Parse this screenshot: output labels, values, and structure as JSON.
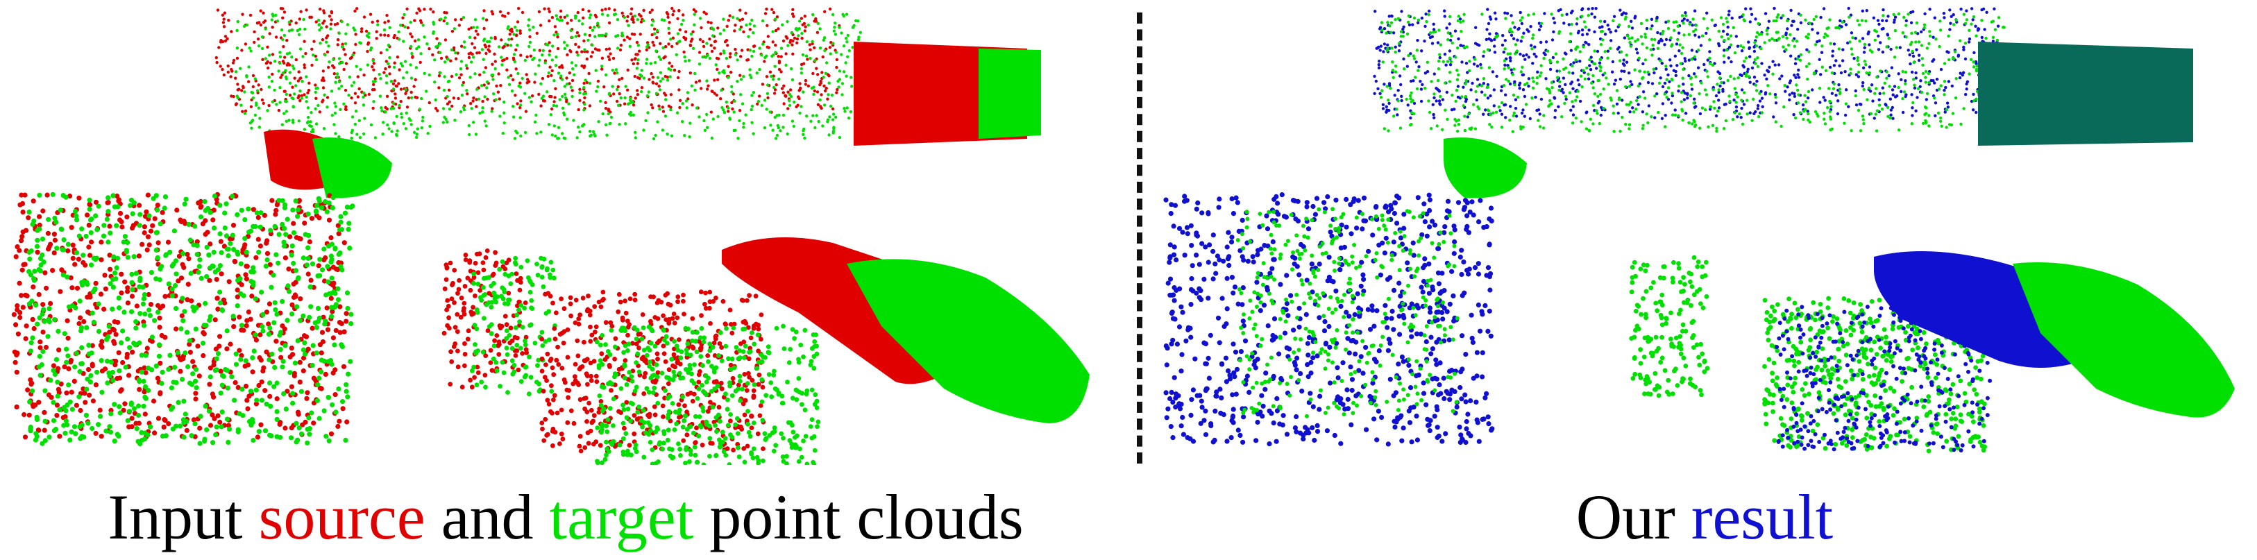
{
  "caption_left": {
    "prefix": "Input ",
    "source": "source",
    "middle": " and ",
    "target": "target",
    "suffix": " point clouds"
  },
  "caption_right": {
    "prefix": "Our ",
    "result": "result"
  },
  "colors": {
    "source": "#e00000",
    "target": "#00e000",
    "result": "#1010d0",
    "text": "#000000",
    "divider": "#111111"
  }
}
